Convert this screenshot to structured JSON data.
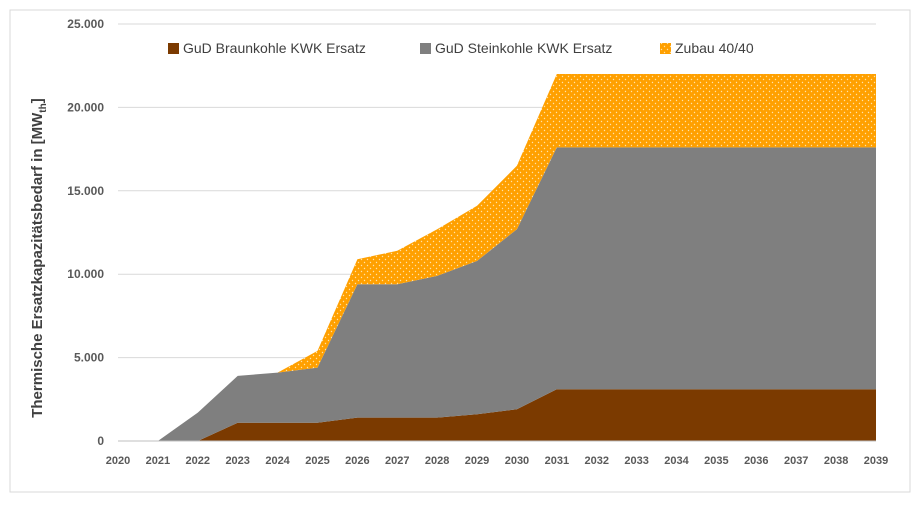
{
  "chart_data": {
    "type": "area",
    "stacked": true,
    "ylabel": "Thermische Ersatzkapazitätsbedarf in [MW",
    "ylabel_subscript": "th",
    "ylabel_suffix": "]",
    "xlabel": "",
    "ylim": [
      0,
      25000
    ],
    "yticks": [
      0,
      5000,
      10000,
      15000,
      20000,
      25000
    ],
    "ytick_labels": [
      "0",
      "5.000",
      "10.000",
      "15.000",
      "20.000",
      "25.000"
    ],
    "x": [
      "2020",
      "2021",
      "2022",
      "2023",
      "2024",
      "2025",
      "2026",
      "2027",
      "2028",
      "2029",
      "2030",
      "2031",
      "2032",
      "2033",
      "2034",
      "2035",
      "2036",
      "2037",
      "2038",
      "2039"
    ],
    "grid": true,
    "legend_position": "top",
    "series": [
      {
        "name": "GuD Braunkohle KWK Ersatz",
        "color": "#7b3a00",
        "values": [
          0,
          0,
          0,
          1100,
          1100,
          1100,
          1400,
          1400,
          1400,
          1600,
          1900,
          3100,
          3100,
          3100,
          3100,
          3100,
          3100,
          3100,
          3100,
          3100
        ]
      },
      {
        "name": "GuD Steinkohle KWK Ersatz",
        "color": "#7f7f7f",
        "values": [
          0,
          0,
          1700,
          2800,
          3000,
          3300,
          8000,
          8000,
          8500,
          9200,
          10800,
          14500,
          14500,
          14500,
          14500,
          14500,
          14500,
          14500,
          14500,
          14500
        ]
      },
      {
        "name": "Zubau 40/40",
        "color": "#ffa000",
        "pattern": "dots",
        "values": [
          0,
          0,
          0,
          0,
          0,
          1000,
          1500,
          2000,
          2800,
          3300,
          3800,
          4400,
          4400,
          4400,
          4400,
          4400,
          4400,
          4400,
          4400,
          4400
        ]
      }
    ]
  }
}
